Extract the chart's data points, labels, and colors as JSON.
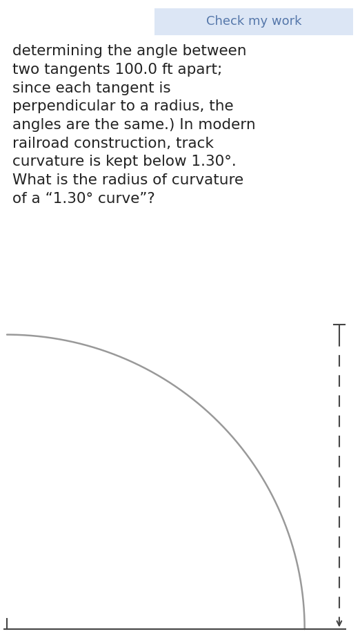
{
  "button_text": "Check my work",
  "button_color": "#dce6f5",
  "button_text_color": "#5577aa",
  "body_text": "determining the angle between\ntwo tangents 100.0 ft apart;\nsince each tangent is\nperpendicular to a radius, the\nangles are the same.) In modern\nrailroad construction, track\ncurvature is kept below 1.30°.\nWhat is the radius of curvature\nof a “1.30° curve”?",
  "text_color": "#222222",
  "text_fontsize": 15.5,
  "bg_color": "#ffffff",
  "arc_color": "#999999",
  "line_color": "#444444",
  "arc_linewidth": 1.8,
  "line_linewidth": 1.5,
  "button_fontsize": 13
}
